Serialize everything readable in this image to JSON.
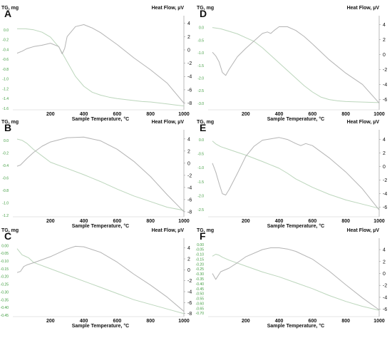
{
  "chart_data": [
    {
      "panel": "A",
      "type": "line",
      "xlabel": "Sample Temperature, °C",
      "ylabel_left": "TG, mg",
      "ylabel_right": "Heat Flow, µV",
      "xticks": [
        "200",
        "400",
        "600",
        "800",
        "1000"
      ],
      "xlim": [
        0,
        1000
      ],
      "yticks_left": [
        "0.0",
        "-0.2",
        "-0.4",
        "-0.6",
        "-0.8",
        "-1.0",
        "-1.2",
        "-1.4",
        "-1.6"
      ],
      "ylim_left": [
        -1.6,
        0.2
      ],
      "yticks_right": [
        "4",
        "2",
        "0",
        "-2",
        "-4",
        "-6",
        "-8"
      ],
      "ylim_right": [
        -8.8,
        4.5
      ],
      "series": [
        {
          "axis": "left",
          "x": [
            0,
            50,
            100,
            150,
            200,
            250,
            300,
            350,
            400,
            450,
            500,
            550,
            600,
            650,
            700,
            750,
            800,
            850,
            900,
            950,
            1000
          ],
          "y": [
            0.02,
            0.02,
            0.0,
            -0.05,
            -0.15,
            -0.35,
            -0.65,
            -0.95,
            -1.15,
            -1.27,
            -1.33,
            -1.37,
            -1.4,
            -1.42,
            -1.44,
            -1.46,
            -1.47,
            -1.49,
            -1.51,
            -1.53,
            -1.55
          ]
        },
        {
          "axis": "right",
          "x": [
            0,
            30,
            60,
            100,
            150,
            200,
            250,
            270,
            285,
            300,
            350,
            400,
            450,
            500,
            550,
            600,
            700,
            800,
            900,
            950,
            1000
          ],
          "y": [
            -0.5,
            -0.2,
            0.2,
            0.5,
            0.7,
            1.0,
            0.5,
            -0.6,
            0.2,
            2.0,
            3.5,
            3.8,
            3.3,
            2.6,
            1.7,
            0.8,
            -1.2,
            -3.0,
            -5.0,
            -6.5,
            -8.0
          ]
        }
      ]
    },
    {
      "panel": "B",
      "type": "line",
      "xlabel": "Sample Temperature, °C",
      "ylabel_left": "TG, mg",
      "ylabel_right": "Heat Flow, µV",
      "xticks": [
        "200",
        "400",
        "600",
        "800",
        "1000"
      ],
      "xlim": [
        0,
        1000
      ],
      "yticks_left": [
        "0.0",
        "-0.2",
        "-0.4",
        "-0.6",
        "-0.8",
        "-1.0",
        "-1.2"
      ],
      "ylim_left": [
        -1.2,
        0.1
      ],
      "yticks_right": [
        "4",
        "2",
        "0",
        "-2",
        "-4",
        "-6",
        "-8"
      ],
      "ylim_right": [
        -8.6,
        4.8
      ],
      "series": [
        {
          "axis": "left",
          "x": [
            0,
            30,
            60,
            100,
            150,
            200,
            300,
            400,
            500,
            600,
            700,
            800,
            900,
            1000
          ],
          "y": [
            0.02,
            0.0,
            -0.05,
            -0.15,
            -0.25,
            -0.35,
            -0.45,
            -0.55,
            -0.66,
            -0.78,
            -0.89,
            -0.98,
            -1.07,
            -1.12
          ]
        },
        {
          "axis": "right",
          "x": [
            0,
            20,
            60,
            100,
            150,
            200,
            300,
            400,
            500,
            600,
            700,
            800,
            900,
            1000
          ],
          "y": [
            -0.5,
            -0.3,
            0.8,
            1.8,
            2.8,
            3.5,
            4.2,
            4.3,
            3.7,
            2.3,
            0.3,
            -2.2,
            -5.2,
            -8.0
          ]
        }
      ]
    },
    {
      "panel": "C",
      "type": "line",
      "xlabel": "Sample Temperature, °C",
      "ylabel_left": "TG, mg",
      "ylabel_right": "Heat Flow, µV",
      "xticks": [
        "200",
        "400",
        "600",
        "800",
        "1000"
      ],
      "xlim": [
        0,
        1000
      ],
      "yticks_left": [
        "0.00",
        "-0.05",
        "-0.10",
        "-0.15",
        "-0.20",
        "-0.25",
        "-0.30",
        "-0.35",
        "-0.40",
        "-0.45"
      ],
      "ylim_left": [
        -0.45,
        0.02
      ],
      "yticks_right": [
        "4",
        "2",
        "0",
        "-2",
        "-4",
        "-6",
        "-8"
      ],
      "ylim_right": [
        -8.3,
        5.0
      ],
      "series": [
        {
          "axis": "left",
          "x": [
            0,
            30,
            50,
            70,
            100,
            200,
            300,
            400,
            500,
            600,
            700,
            800,
            900,
            1000
          ],
          "y": [
            -0.02,
            -0.06,
            -0.07,
            -0.08,
            -0.11,
            -0.15,
            -0.19,
            -0.23,
            -0.27,
            -0.31,
            -0.35,
            -0.38,
            -0.41,
            -0.44
          ]
        },
        {
          "axis": "right",
          "x": [
            0,
            20,
            40,
            60,
            100,
            200,
            300,
            350,
            400,
            500,
            600,
            700,
            800,
            900,
            1000
          ],
          "y": [
            -0.5,
            -0.3,
            0.6,
            0.9,
            1.3,
            2.4,
            3.8,
            4.3,
            4.2,
            3.2,
            1.4,
            -0.8,
            -2.8,
            -5.0,
            -7.6
          ]
        }
      ]
    },
    {
      "panel": "D",
      "type": "line",
      "xlabel": "Sample Temperature, °C",
      "ylabel_left": "TG, mg",
      "ylabel_right": "Heat Flow, µV",
      "xticks": [
        "200",
        "400",
        "600",
        "800",
        "1000"
      ],
      "xlim": [
        0,
        1000
      ],
      "yticks_left": [
        "0.0",
        "-0.5",
        "-1.0",
        "-1.5",
        "-2.0",
        "-2.5",
        "-3.0"
      ],
      "ylim_left": [
        -3.2,
        0.3
      ],
      "yticks_right": [
        "4",
        "2",
        "0",
        "-2",
        "-4",
        "-6"
      ],
      "ylim_right": [
        -7.2,
        4.6
      ],
      "series": [
        {
          "axis": "left",
          "x": [
            0,
            50,
            100,
            150,
            200,
            250,
            300,
            350,
            400,
            450,
            500,
            550,
            600,
            650,
            700,
            750,
            800,
            900,
            1000
          ],
          "y": [
            0.0,
            -0.05,
            -0.15,
            -0.25,
            -0.4,
            -0.55,
            -0.8,
            -1.1,
            -1.4,
            -1.7,
            -2.0,
            -2.3,
            -2.55,
            -2.75,
            -2.85,
            -2.9,
            -2.93,
            -2.95,
            -2.97
          ]
        },
        {
          "axis": "right",
          "x": [
            0,
            20,
            40,
            60,
            80,
            100,
            150,
            200,
            250,
            300,
            330,
            350,
            370,
            400,
            450,
            500,
            550,
            600,
            700,
            800,
            900,
            1000
          ],
          "y": [
            0.3,
            -0.2,
            -1.0,
            -2.4,
            -2.8,
            -2.0,
            -0.3,
            0.8,
            1.8,
            2.8,
            3.0,
            2.8,
            3.2,
            3.7,
            3.7,
            3.2,
            2.4,
            1.4,
            -0.7,
            -2.5,
            -4.0,
            -6.5
          ]
        }
      ]
    },
    {
      "panel": "E",
      "type": "line",
      "xlabel": "Sample Temperature, °C",
      "ylabel_left": "TG, mg",
      "ylabel_right": "Heat Flow, µV",
      "xticks": [
        "200",
        "400",
        "600",
        "800",
        "1000"
      ],
      "xlim": [
        0,
        1000
      ],
      "yticks_left": [
        "0.0",
        "-0.5",
        "-1.0",
        "-1.5",
        "-2.0",
        "-2.5"
      ],
      "ylim_left": [
        -2.7,
        0.2
      ],
      "yticks_right": [
        "4",
        "2",
        "0",
        "-2",
        "-4",
        "-6"
      ],
      "ylim_right": [
        -7.2,
        4.8
      ],
      "series": [
        {
          "axis": "left",
          "x": [
            0,
            20,
            50,
            100,
            150,
            200,
            300,
            400,
            450,
            500,
            600,
            700,
            800,
            900,
            1000
          ],
          "y": [
            -0.05,
            -0.15,
            -0.25,
            -0.35,
            -0.45,
            -0.55,
            -0.78,
            -1.02,
            -1.2,
            -1.4,
            -1.7,
            -1.95,
            -2.15,
            -2.3,
            -2.45
          ]
        },
        {
          "axis": "right",
          "x": [
            0,
            20,
            40,
            60,
            80,
            100,
            150,
            200,
            250,
            300,
            400,
            450,
            500,
            530,
            560,
            600,
            700,
            800,
            900,
            1000
          ],
          "y": [
            0.5,
            -0.8,
            -2.5,
            -4.0,
            -4.2,
            -3.4,
            -1.0,
            1.5,
            3.0,
            3.9,
            4.3,
            4.0,
            3.4,
            3.1,
            3.4,
            3.1,
            1.3,
            -0.8,
            -3.3,
            -6.4
          ]
        }
      ]
    },
    {
      "panel": "F",
      "type": "line",
      "xlabel": "Sample Temperature, °C",
      "ylabel_left": "TG, mg",
      "ylabel_right": "Heat Flow, µV",
      "xticks": [
        "200",
        "400",
        "600",
        "800",
        "1000"
      ],
      "xlim": [
        0,
        1000
      ],
      "yticks_left": [
        "0.00",
        "-0.05",
        "-0.10",
        "-0.15",
        "-0.20",
        "-0.25",
        "-0.30",
        "-0.35",
        "-0.40",
        "-0.45",
        "-0.50",
        "-0.55",
        "-0.60",
        "-0.65",
        "-0.70"
      ],
      "ylim_left": [
        -0.72,
        0.02
      ],
      "yticks_right": [
        "4",
        "2",
        "0",
        "-2",
        "-4",
        "-6"
      ],
      "ylim_right": [
        -7.0,
        5.2
      ],
      "series": [
        {
          "axis": "left",
          "x": [
            0,
            20,
            40,
            60,
            100,
            200,
            300,
            400,
            500,
            600,
            700,
            800,
            900,
            1000
          ],
          "y": [
            -0.12,
            -0.1,
            -0.11,
            -0.13,
            -0.16,
            -0.22,
            -0.28,
            -0.33,
            -0.39,
            -0.45,
            -0.52,
            -0.58,
            -0.63,
            -0.67
          ]
        },
        {
          "axis": "right",
          "x": [
            0,
            20,
            50,
            100,
            150,
            200,
            300,
            350,
            400,
            450,
            500,
            600,
            700,
            800,
            900,
            1000
          ],
          "y": [
            0.0,
            -1.0,
            0.3,
            0.9,
            1.8,
            2.8,
            4.0,
            4.3,
            4.3,
            4.1,
            3.7,
            2.4,
            0.4,
            -1.9,
            -4.1,
            -6.1
          ]
        }
      ]
    }
  ],
  "colors": {
    "tg_line": "#bcd6bc",
    "dsc_line": "#b4b4b4",
    "left_tick": "#3a9a3a",
    "text": "#111111"
  }
}
